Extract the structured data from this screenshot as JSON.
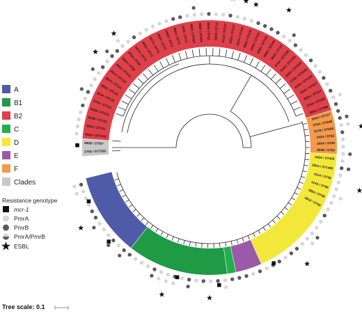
{
  "legend_clades": {
    "items": [
      {
        "label": "A",
        "color": "#4f5aa8"
      },
      {
        "label": "B1",
        "color": "#1f9a45"
      },
      {
        "label": "B2",
        "color": "#e0404a"
      },
      {
        "label": "C",
        "color": "#21b04b"
      },
      {
        "label": "D",
        "color": "#f3e83a"
      },
      {
        "label": "E",
        "color": "#9a5aa8"
      },
      {
        "label": "F",
        "color": "#f39a4c"
      },
      {
        "label": "Clades",
        "color": "#c8c8c8"
      }
    ]
  },
  "legend_resistance": {
    "title": "Resistance genotype",
    "items": [
      {
        "label": "mcr-1",
        "icon": "black-square-icon"
      },
      {
        "label": "PmrA",
        "icon": "light-grey-circle-icon"
      },
      {
        "label": "PmrB",
        "icon": "dark-grey-circle-icon"
      },
      {
        "label": "PmrA/PmrB",
        "icon": "half-grey-circle-icon"
      },
      {
        "label": "ESBL",
        "icon": "star-icon"
      }
    ]
  },
  "tree_scale": {
    "label": "Tree scale: 0.1"
  },
  "leaf_labels": {
    "grey_1": "376D / ST7558",
    "grey_2": "895B / ST95*",
    "orange_1": "304A / ST117",
    "orange_2": "275A / ST648",
    "orange_3": "317B / ST648",
    "orange_4": "342A / ST62",
    "orange_5": "200A / ST59",
    "orange_6": "562B / ST59",
    "yellow_1": "345A / ST349",
    "yellow_2": "200A / ST1485",
    "yellow_3": "411A / ST38",
    "yellow_4": "414A / ST69",
    "yellow_5": "388A / ST69",
    "yellow_6": "381A / ST69",
    "red_1": "352A / ST1193",
    "red_2": "494A / ST131",
    "red_3": "569B / ST131",
    "red_4": "402B / ST131",
    "red_5": "376A / ST131",
    "red_6": "364A / ST131",
    "red_7": "385A / ST131",
    "red_8": "492A / ST131",
    "red_9": "461A / ST131",
    "red_10": "406A / ST131",
    "red_11": "365A / ST95",
    "red_12": "303A / ST95",
    "red_13": "347A / ST73",
    "red_14": "482A / ST73",
    "red_15": "327A / ST73",
    "red_16": "302A / ST73",
    "red_17": "349A / ST73",
    "red_18": "491A / ST73",
    "red_19": "443A / ST73",
    "red_20": "458A / ST404",
    "red_21": "488A / ST404",
    "red_22": "363A / ST12",
    "red_23": "390A / ST12",
    "red_24": "311A / ST127",
    "red_25": "452A / ST127",
    "red_26": "320A / ST141",
    "red_27": "495A / ST141",
    "red_28": "344A / ST141",
    "red_29": "459A / ST144",
    "red_30": "398A / ST144",
    "red_31": "360A / ST14",
    "red_32": "473A / ST1193",
    "red_33": "354A / ST1193",
    "red_34": "339A / ST1193",
    "red_35": "472A / ST1193",
    "red_36": "413A / ST1193",
    "red_37": "464A / ST537",
    "red_38": "309A / ST537",
    "red_39": "375A / ST998",
    "red_40": "466A / ST998"
  }
}
